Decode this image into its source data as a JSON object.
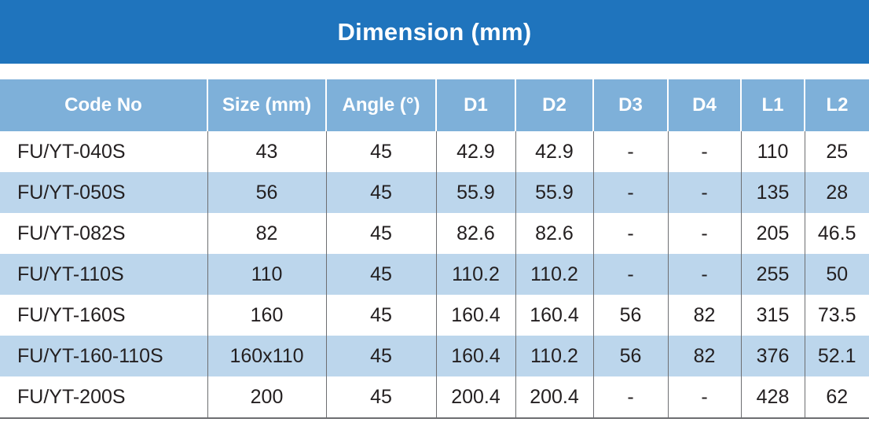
{
  "title": "Dimension (mm)",
  "colors": {
    "title_bg": "#1f74bd",
    "header_bg": "#7eb0d9",
    "stripe_bg": "#bcd6ec",
    "text": "#231f20"
  },
  "table": {
    "headers": [
      "Code No",
      "Size (mm)",
      "Angle (°)",
      "D1",
      "D2",
      "D3",
      "D4",
      "L1",
      "L2"
    ],
    "rows": [
      [
        "FU/YT-040S",
        "43",
        "45",
        "42.9",
        "42.9",
        "-",
        "-",
        "110",
        "25"
      ],
      [
        "FU/YT-050S",
        "56",
        "45",
        "55.9",
        "55.9",
        "-",
        "-",
        "135",
        "28"
      ],
      [
        "FU/YT-082S",
        "82",
        "45",
        "82.6",
        "82.6",
        "-",
        "-",
        "205",
        "46.5"
      ],
      [
        "FU/YT-110S",
        "110",
        "45",
        "110.2",
        "110.2",
        "-",
        "-",
        "255",
        "50"
      ],
      [
        "FU/YT-160S",
        "160",
        "45",
        "160.4",
        "160.4",
        "56",
        "82",
        "315",
        "73.5"
      ],
      [
        "FU/YT-160-110S",
        "160x110",
        "45",
        "160.4",
        "110.2",
        "56",
        "82",
        "376",
        "52.1"
      ],
      [
        "FU/YT-200S",
        "200",
        "45",
        "200.4",
        "200.4",
        "-",
        "-",
        "428",
        "62"
      ]
    ]
  }
}
